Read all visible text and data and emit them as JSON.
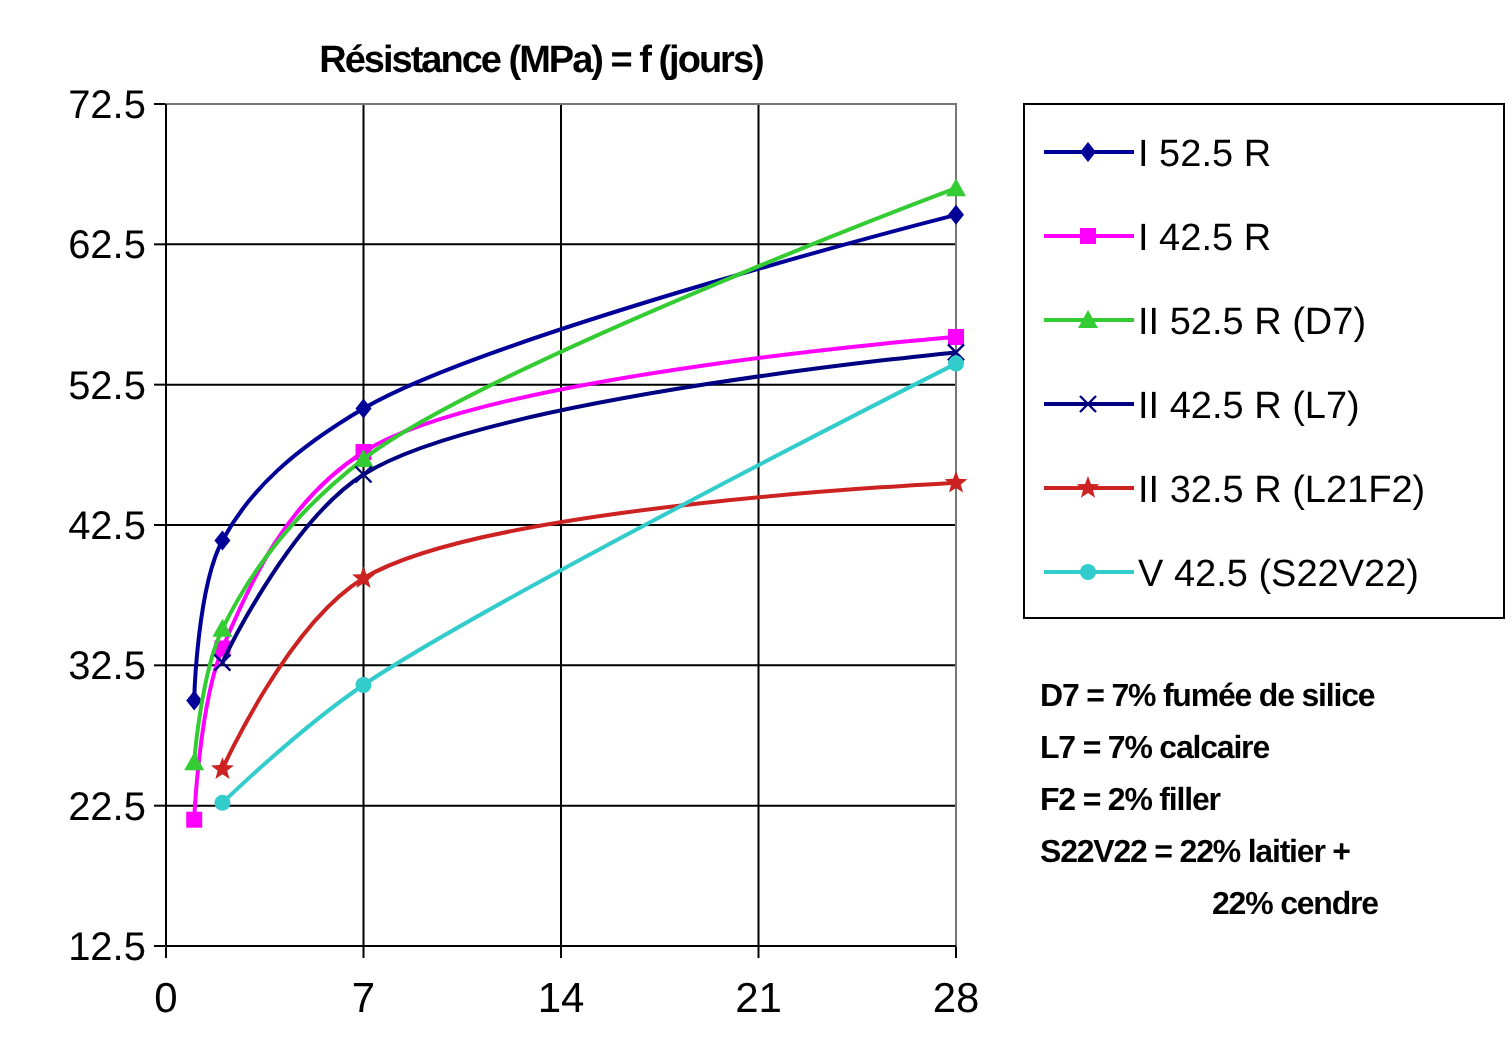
{
  "chart_data": {
    "type": "line",
    "title": "Résistance (MPa) = f (jours)",
    "xlim": [
      0,
      28
    ],
    "xticks": [
      0,
      7,
      14,
      21,
      28
    ],
    "ylim": [
      12.5,
      72.5
    ],
    "yticks": [
      12.5,
      22.5,
      32.5,
      42.5,
      52.5,
      62.5,
      72.5
    ],
    "grid": true,
    "legend": "right",
    "series": [
      {
        "name": "I 52.5 R",
        "color": "#000099",
        "marker": "diamond",
        "x": [
          1,
          2,
          7,
          28
        ],
        "values": [
          30.0,
          41.4,
          50.8,
          64.6
        ]
      },
      {
        "name": "I 42.5 R",
        "color": "#ff00ff",
        "marker": "square",
        "x": [
          1,
          2,
          7,
          28
        ],
        "values": [
          21.5,
          33.7,
          47.7,
          55.9
        ]
      },
      {
        "name": "II 52.5 R (D7)",
        "color": "#33cc33",
        "marker": "triangle",
        "x": [
          1,
          2,
          7,
          28
        ],
        "values": [
          25.6,
          35.1,
          47.2,
          66.5
        ]
      },
      {
        "name": "II 42.5 R (L7)",
        "color": "#000080",
        "marker": "cross",
        "x": [
          2,
          7,
          28
        ],
        "values": [
          32.7,
          46.1,
          54.8
        ]
      },
      {
        "name": "II 32.5 R (L21F2)",
        "color": "#cc2222",
        "marker": "star",
        "x": [
          2,
          7,
          28
        ],
        "values": [
          25.1,
          38.7,
          45.5
        ]
      },
      {
        "name": "V  42.5 (S22V22)",
        "color": "#33cccc",
        "marker": "circle",
        "x": [
          2,
          7,
          28
        ],
        "values": [
          22.7,
          31.1,
          54.0
        ]
      }
    ],
    "annotations": [
      "D7 = 7%  fumée de silice",
      "L7 = 7%  calcaire",
      "F2 = 2%  filler",
      "S22V22 = 22%  laitier +\n22%  cendre"
    ]
  }
}
